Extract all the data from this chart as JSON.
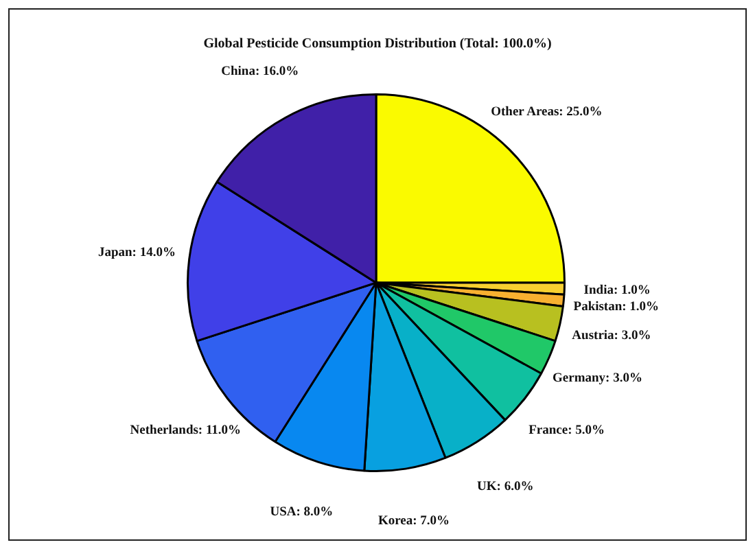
{
  "chart_data": {
    "type": "pie",
    "title": "Global Pesticide Consumption Distribution (Total: 100.0%)",
    "categories": [
      "Other Areas",
      "India",
      "Pakistan",
      "Austria",
      "Germany",
      "France",
      "UK",
      "Korea",
      "USA",
      "Netherlands",
      "Japan",
      "China"
    ],
    "values": [
      25,
      1,
      1,
      3,
      3,
      5,
      6,
      7,
      8,
      11,
      14,
      16
    ],
    "value_labels": [
      "25.0%",
      "1.0%",
      "1.0%",
      "3.0%",
      "3.0%",
      "5.0%",
      "6.0%",
      "7.0%",
      "8.0%",
      "11.0%",
      "14.0%",
      "16.0%"
    ],
    "colors": [
      "#fafa00",
      "#f8d030",
      "#f8b030",
      "#b8c020",
      "#20c868",
      "#10c0a0",
      "#08b0c8",
      "#08a0e0",
      "#0888f0",
      "#3060f0",
      "#4040e8",
      "#4020a8"
    ],
    "legend": false
  }
}
